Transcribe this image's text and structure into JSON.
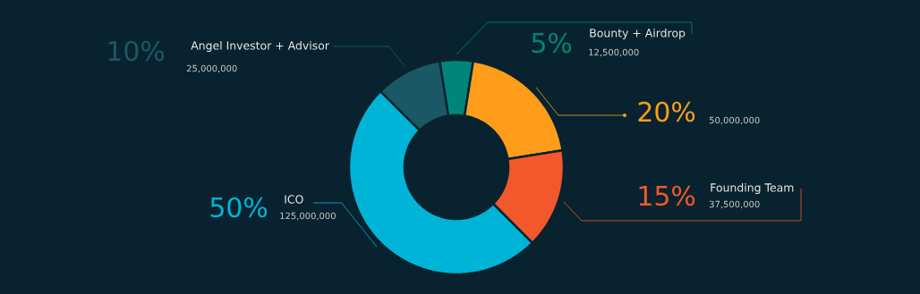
{
  "chart_data": {
    "type": "donut",
    "categories": [
      "Bounty + Airdrop",
      null,
      "Founding Team",
      "ICO",
      "Angel Investor + Advisor"
    ],
    "values": [
      5,
      20,
      15,
      50,
      10
    ],
    "value_labels": [
      "5%",
      "20%",
      "15%",
      "50%",
      "10%"
    ],
    "colors": [
      "#00857a",
      "#ff9d1a",
      "#f2582b",
      "#00b4d8",
      "#1b5866"
    ],
    "annotations": [
      "12,500,000",
      "50,000,000",
      "37,500,000",
      "125,000,000",
      "25,000,000"
    ]
  }
}
